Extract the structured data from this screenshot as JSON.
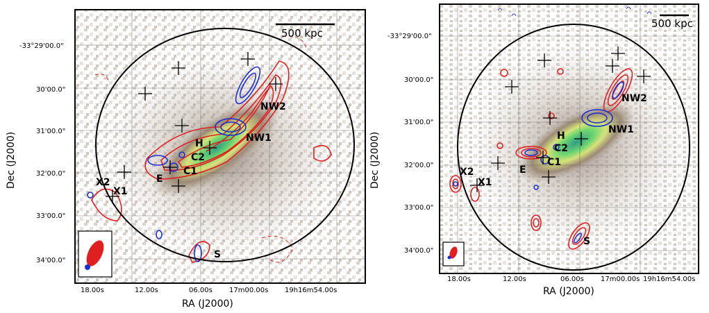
{
  "panels": [
    {
      "axis": {
        "xlabel": "RA (J2000)",
        "ylabel": "Dec (J2000)"
      },
      "ra_ticks": [
        "18.00s",
        "12.00s",
        "06.00s",
        "17m00.00s",
        "19h16m54.00s"
      ],
      "dec_ticks": [
        "-33°29'00.0\"",
        "30'00.0\"",
        "31'00.0\"",
        "32'00.0\"",
        "33'00.0\"",
        "34'00.0\""
      ],
      "scalebar": "500 kpc",
      "sources": [
        "NW2",
        "NW1",
        "H",
        "C2",
        "C1",
        "E",
        "X2",
        "X1",
        "S"
      ]
    },
    {
      "axis": {
        "xlabel": "RA (J2000)",
        "ylabel": "Dec (J2000)"
      },
      "ra_ticks": [
        "18.00s",
        "12.00s",
        "06.00s",
        "17m00.00s",
        "19h16m54.00s"
      ],
      "dec_ticks": [
        "-33°29'00.0\"",
        "30'00.0\"",
        "31'00.0\"",
        "32'00.0\"",
        "33'00.0\"",
        "34'00.0\""
      ],
      "scalebar": "500 kpc",
      "sources": [
        "NW2",
        "NW1",
        "H",
        "C2",
        "C1",
        "E",
        "X2",
        "X1",
        "S"
      ]
    }
  ],
  "colors": {
    "radio_red": "#e02020",
    "radio_blue": "#1a2fd6",
    "xray_low": "#8a7a6e",
    "xray_high": "#3ad0a0"
  }
}
